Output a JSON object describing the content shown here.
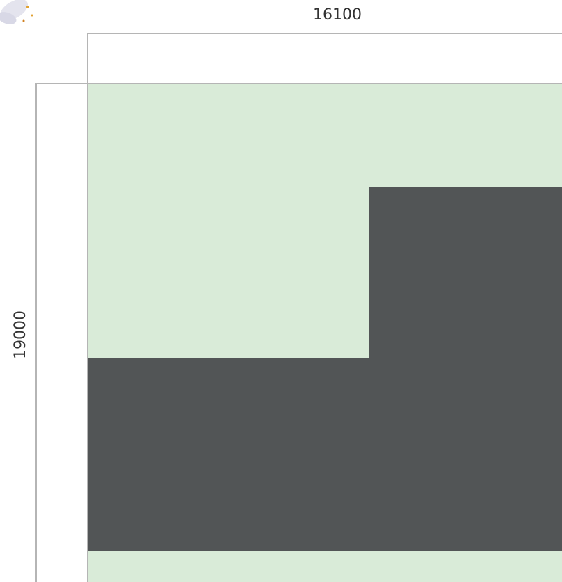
{
  "dimensions": {
    "width": "16100",
    "height": "19000"
  }
}
